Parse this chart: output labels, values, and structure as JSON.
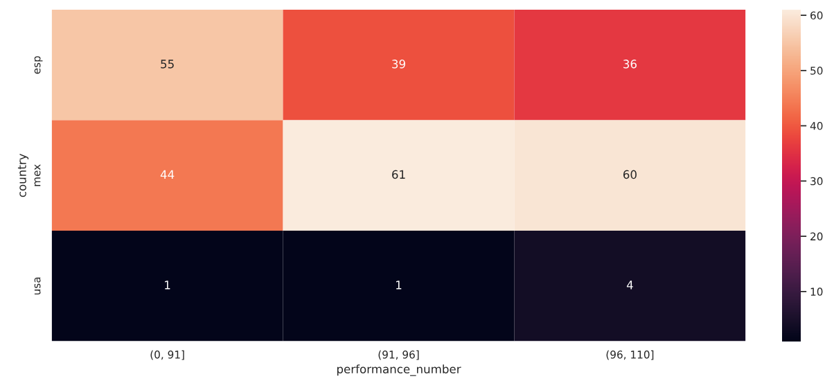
{
  "chart_data": {
    "type": "heatmap",
    "xlabel": "performance_number",
    "ylabel": "country",
    "categories": [
      "(0, 91]",
      "(91, 96]",
      "(96, 110]"
    ],
    "y_categories": [
      "esp",
      "mex",
      "usa"
    ],
    "cells": [
      [
        55,
        39,
        36
      ],
      [
        44,
        61,
        60
      ],
      [
        1,
        1,
        4
      ]
    ],
    "data_labels": true,
    "clim": [
      1,
      61
    ],
    "cticks": [
      10,
      20,
      30,
      40,
      50,
      60
    ]
  }
}
